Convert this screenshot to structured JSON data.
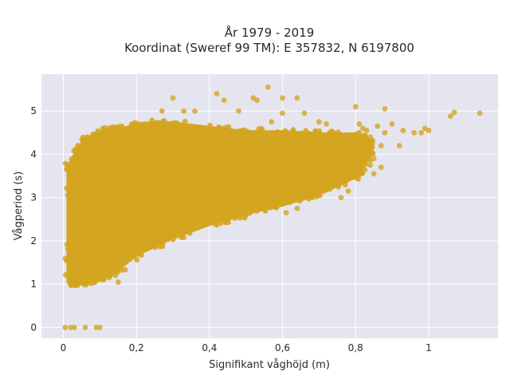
{
  "chart_data": {
    "type": "scatter",
    "title_lines": [
      "År 1979 - 2019",
      "Koordinat (Sweref 99 TM): E 357832, N 6197800"
    ],
    "xlabel": "Signifikant våghöjd (m)",
    "ylabel": "Vågperiod (s)",
    "xlim": [
      -0.06,
      1.19
    ],
    "ylim": [
      -0.25,
      5.85
    ],
    "x_ticks": [
      0,
      0.2,
      0.4,
      0.6,
      0.8,
      1
    ],
    "x_tick_labels": [
      "0",
      "0,2",
      "0,4",
      "0,6",
      "0,8",
      "1"
    ],
    "y_ticks": [
      0,
      1,
      2,
      3,
      4,
      5
    ],
    "y_tick_labels": [
      "0",
      "1",
      "2",
      "3",
      "4",
      "5"
    ],
    "grid": true,
    "colors": {
      "plot_bg": "#e5e5ef",
      "grid": "#ffffff",
      "point": "#d4a520"
    },
    "dense_cloud_polygon": [
      [
        0.015,
        1.05
      ],
      [
        0.04,
        1.05
      ],
      [
        0.09,
        1.08
      ],
      [
        0.14,
        1.3
      ],
      [
        0.2,
        1.7
      ],
      [
        0.3,
        2.1
      ],
      [
        0.4,
        2.4
      ],
      [
        0.5,
        2.65
      ],
      [
        0.6,
        2.85
      ],
      [
        0.7,
        3.1
      ],
      [
        0.8,
        3.5
      ],
      [
        0.84,
        4.0
      ],
      [
        0.84,
        4.3
      ],
      [
        0.8,
        4.45
      ],
      [
        0.7,
        4.45
      ],
      [
        0.6,
        4.5
      ],
      [
        0.5,
        4.5
      ],
      [
        0.4,
        4.6
      ],
      [
        0.3,
        4.7
      ],
      [
        0.22,
        4.7
      ],
      [
        0.15,
        4.55
      ],
      [
        0.1,
        4.5
      ],
      [
        0.06,
        4.3
      ],
      [
        0.04,
        4.1
      ],
      [
        0.015,
        3.7
      ]
    ],
    "series": [
      {
        "x": [
          0.005,
          0.02,
          0.03,
          0.06,
          0.09,
          0.1,
          0.005,
          0.01,
          0.03,
          0.008,
          0.05,
          0.08,
          0.025,
          0.035,
          0.15,
          0.125,
          0.11,
          0.16,
          0.2,
          0.27,
          0.3,
          0.33,
          0.36,
          0.42,
          0.44,
          0.48,
          0.52,
          0.53,
          0.56,
          0.57,
          0.6,
          0.6,
          0.64,
          0.66,
          0.7,
          0.72,
          0.74,
          0.76,
          0.78,
          0.8,
          0.8,
          0.81,
          0.82,
          0.83,
          0.84,
          0.84,
          0.85,
          0.86,
          0.87,
          0.88,
          0.88,
          0.9,
          0.92,
          0.93,
          0.96,
          0.98,
          0.99,
          1.0,
          1.06,
          1.07,
          1.14,
          0.78,
          0.75,
          0.7,
          0.68,
          0.76,
          0.73,
          0.82,
          0.85,
          0.87,
          0.43,
          0.61,
          0.64
        ],
        "y": [
          0,
          0,
          0,
          0,
          0,
          0,
          1.6,
          1.55,
          1.63,
          1.55,
          2.4,
          2.35,
          2.3,
          1.65,
          1.05,
          1.15,
          1.1,
          4.65,
          4.65,
          5.0,
          5.3,
          5.0,
          5.0,
          5.4,
          5.25,
          5.0,
          5.3,
          5.25,
          5.55,
          4.75,
          4.95,
          5.3,
          5.3,
          4.95,
          4.75,
          4.7,
          4.5,
          4.45,
          4.35,
          4.2,
          5.1,
          4.7,
          4.6,
          4.55,
          4.4,
          3.75,
          3.55,
          4.65,
          4.2,
          4.5,
          5.05,
          4.7,
          4.2,
          4.55,
          4.5,
          4.5,
          4.6,
          4.55,
          4.88,
          4.97,
          4.95,
          3.15,
          3.4,
          3.6,
          3.9,
          3.0,
          3.2,
          3.85,
          3.9,
          3.7,
          2.4,
          2.65,
          2.75
        ]
      }
    ]
  }
}
